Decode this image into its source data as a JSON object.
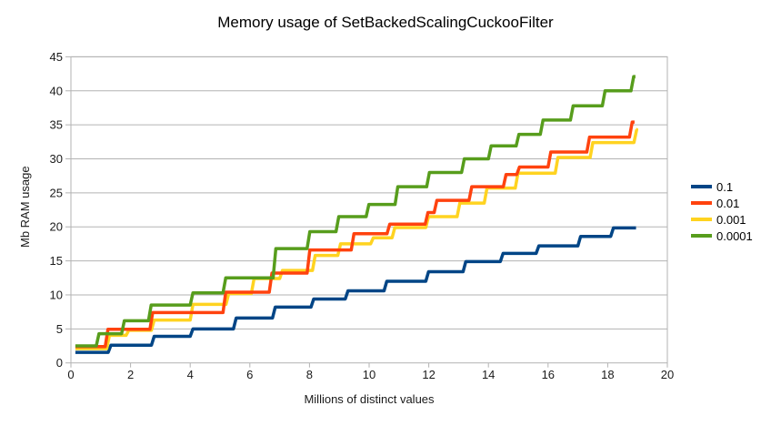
{
  "page": {
    "background": "#ffffff"
  },
  "chart_data": {
    "type": "line",
    "step": true,
    "title": "Memory usage of SetBackedScalingCuckooFilter",
    "xlabel": "Millions of distinct values",
    "ylabel": "Mb RAM usage",
    "xlim": [
      0,
      20
    ],
    "ylim": [
      0,
      45
    ],
    "xticks": [
      0,
      2,
      4,
      6,
      8,
      10,
      12,
      14,
      16,
      18,
      20
    ],
    "yticks": [
      0,
      5,
      10,
      15,
      20,
      25,
      30,
      35,
      40,
      45
    ],
    "grid": "horizontal",
    "legend_position": "right",
    "colors": {
      "grid": "#b3b3b3",
      "axis": "#b3b3b3",
      "text": "#1a1a1a"
    },
    "series": [
      {
        "name": "0.1",
        "color": "#004586",
        "points": [
          [
            0.15,
            1.55
          ],
          [
            1.25,
            2.6
          ],
          [
            2.7,
            3.9
          ],
          [
            4.0,
            5.0
          ],
          [
            5.45,
            6.6
          ],
          [
            6.76,
            8.2
          ],
          [
            8.05,
            9.4
          ],
          [
            9.2,
            10.6
          ],
          [
            10.5,
            12.0
          ],
          [
            11.9,
            13.4
          ],
          [
            13.15,
            14.9
          ],
          [
            14.4,
            16.1
          ],
          [
            15.6,
            17.2
          ],
          [
            17.0,
            18.6
          ],
          [
            18.1,
            19.85
          ],
          [
            18.95,
            19.85
          ]
        ]
      },
      {
        "name": "0.01",
        "color": "#ff420e",
        "points": [
          [
            0.15,
            2.4
          ],
          [
            1.15,
            4.95
          ],
          [
            2.65,
            7.4
          ],
          [
            5.1,
            10.4
          ],
          [
            6.65,
            13.2
          ],
          [
            7.92,
            16.6
          ],
          [
            9.4,
            19.0
          ],
          [
            10.6,
            20.4
          ],
          [
            11.88,
            22.1
          ],
          [
            12.18,
            23.9
          ],
          [
            13.35,
            25.9
          ],
          [
            14.5,
            27.7
          ],
          [
            14.95,
            28.8
          ],
          [
            16.0,
            31.0
          ],
          [
            17.3,
            33.2
          ],
          [
            18.73,
            35.4
          ],
          [
            18.9,
            35.4
          ]
        ]
      },
      {
        "name": "0.001",
        "color": "#ffd320",
        "points": [
          [
            0.15,
            2.1
          ],
          [
            1.2,
            4.05
          ],
          [
            1.85,
            4.8
          ],
          [
            2.7,
            6.3
          ],
          [
            4.0,
            8.6
          ],
          [
            5.2,
            10.2
          ],
          [
            6.05,
            12.4
          ],
          [
            7.0,
            13.6
          ],
          [
            8.1,
            15.8
          ],
          [
            8.95,
            17.5
          ],
          [
            10.05,
            18.4
          ],
          [
            10.77,
            19.9
          ],
          [
            11.9,
            21.5
          ],
          [
            12.95,
            23.5
          ],
          [
            13.86,
            25.7
          ],
          [
            14.9,
            27.9
          ],
          [
            16.24,
            30.2
          ],
          [
            17.41,
            32.4
          ],
          [
            18.88,
            34.3
          ],
          [
            18.95,
            34.3
          ]
        ]
      },
      {
        "name": "0.0001",
        "color": "#579d1c",
        "points": [
          [
            0.15,
            2.5
          ],
          [
            0.85,
            4.3
          ],
          [
            1.7,
            6.2
          ],
          [
            2.6,
            8.5
          ],
          [
            4.0,
            10.3
          ],
          [
            5.1,
            12.5
          ],
          [
            6.78,
            16.8
          ],
          [
            7.92,
            19.3
          ],
          [
            8.89,
            21.5
          ],
          [
            9.9,
            23.3
          ],
          [
            10.87,
            25.9
          ],
          [
            11.93,
            28.0
          ],
          [
            13.1,
            30.0
          ],
          [
            14.0,
            31.9
          ],
          [
            14.93,
            33.6
          ],
          [
            15.74,
            35.7
          ],
          [
            16.75,
            37.8
          ],
          [
            17.82,
            40.0
          ],
          [
            18.78,
            42.1
          ],
          [
            18.93,
            42.1
          ]
        ]
      }
    ]
  }
}
